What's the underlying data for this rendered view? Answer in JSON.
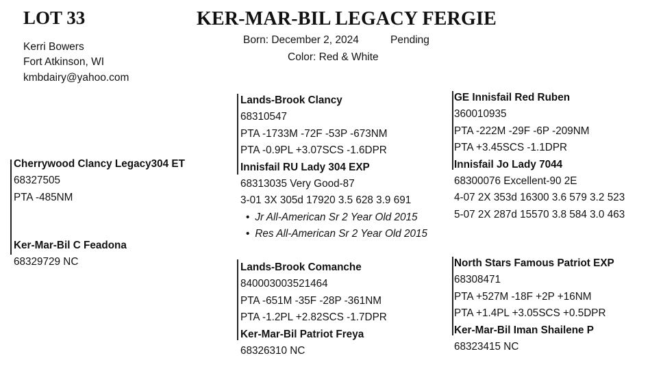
{
  "header": {
    "lot": "LOT 33",
    "title": "KER-MAR-BIL LEGACY FERGIE",
    "born": "Born: December 2, 2024",
    "status": "Pending",
    "color": "Color: Red & White"
  },
  "consignor": {
    "name": "Kerri Bowers",
    "location": "Fort Atkinson, WI",
    "email": "kmbdairy@yahoo.com"
  },
  "pedigree": {
    "sire": [
      "Cherrywood Clancy Legacy304 ET",
      "68327505",
      "PTA -485NM"
    ],
    "dam": [
      "Ker-Mar-Bil C Feadona",
      "68329729 NC"
    ],
    "sire_sire": [
      "Lands-Brook Clancy",
      "68310547",
      "PTA -1733M -72F -53P -673NM",
      "PTA -0.9PL +3.07SCS -1.6DPR"
    ],
    "sire_dam": [
      "Innisfail RU Lady 304 EXP",
      "68313035 Very Good-87",
      "3-01 3X 305d 17920 3.5 628 3.9 691",
      "Jr All-American Sr 2 Year Old 2015",
      "Res All-American Sr 2 Year Old 2015"
    ],
    "dam_sire": [
      "Lands-Brook Comanche",
      "840003003521464",
      "PTA -651M -35F -28P -361NM",
      "PTA -1.2PL +2.82SCS -1.7DPR"
    ],
    "dam_dam": [
      "Ker-Mar-Bil Patriot Freya",
      "68326310 NC"
    ],
    "ss_sire": [
      "GE Innisfail Red Ruben",
      "360010935",
      "PTA -222M -29F -6P -209NM",
      "PTA +3.45SCS -1.1DPR"
    ],
    "ss_dam": [
      "Innisfail Jo Lady 7044",
      "68300076 Excellent-90 2E",
      "4-07 2X 353d 16300 3.6 579 3.2 523",
      "5-07 2X 287d 15570 3.8 584 3.0 463"
    ],
    "ds_sire": [
      "North Stars Famous Patriot EXP",
      "68308471",
      "PTA +527M -18F +2P +16NM",
      "PTA +1.4PL +3.05SCS +0.5DPR"
    ],
    "ds_dam": [
      "Ker-Mar-Bil Iman Shailene P",
      "68323415 NC"
    ]
  }
}
